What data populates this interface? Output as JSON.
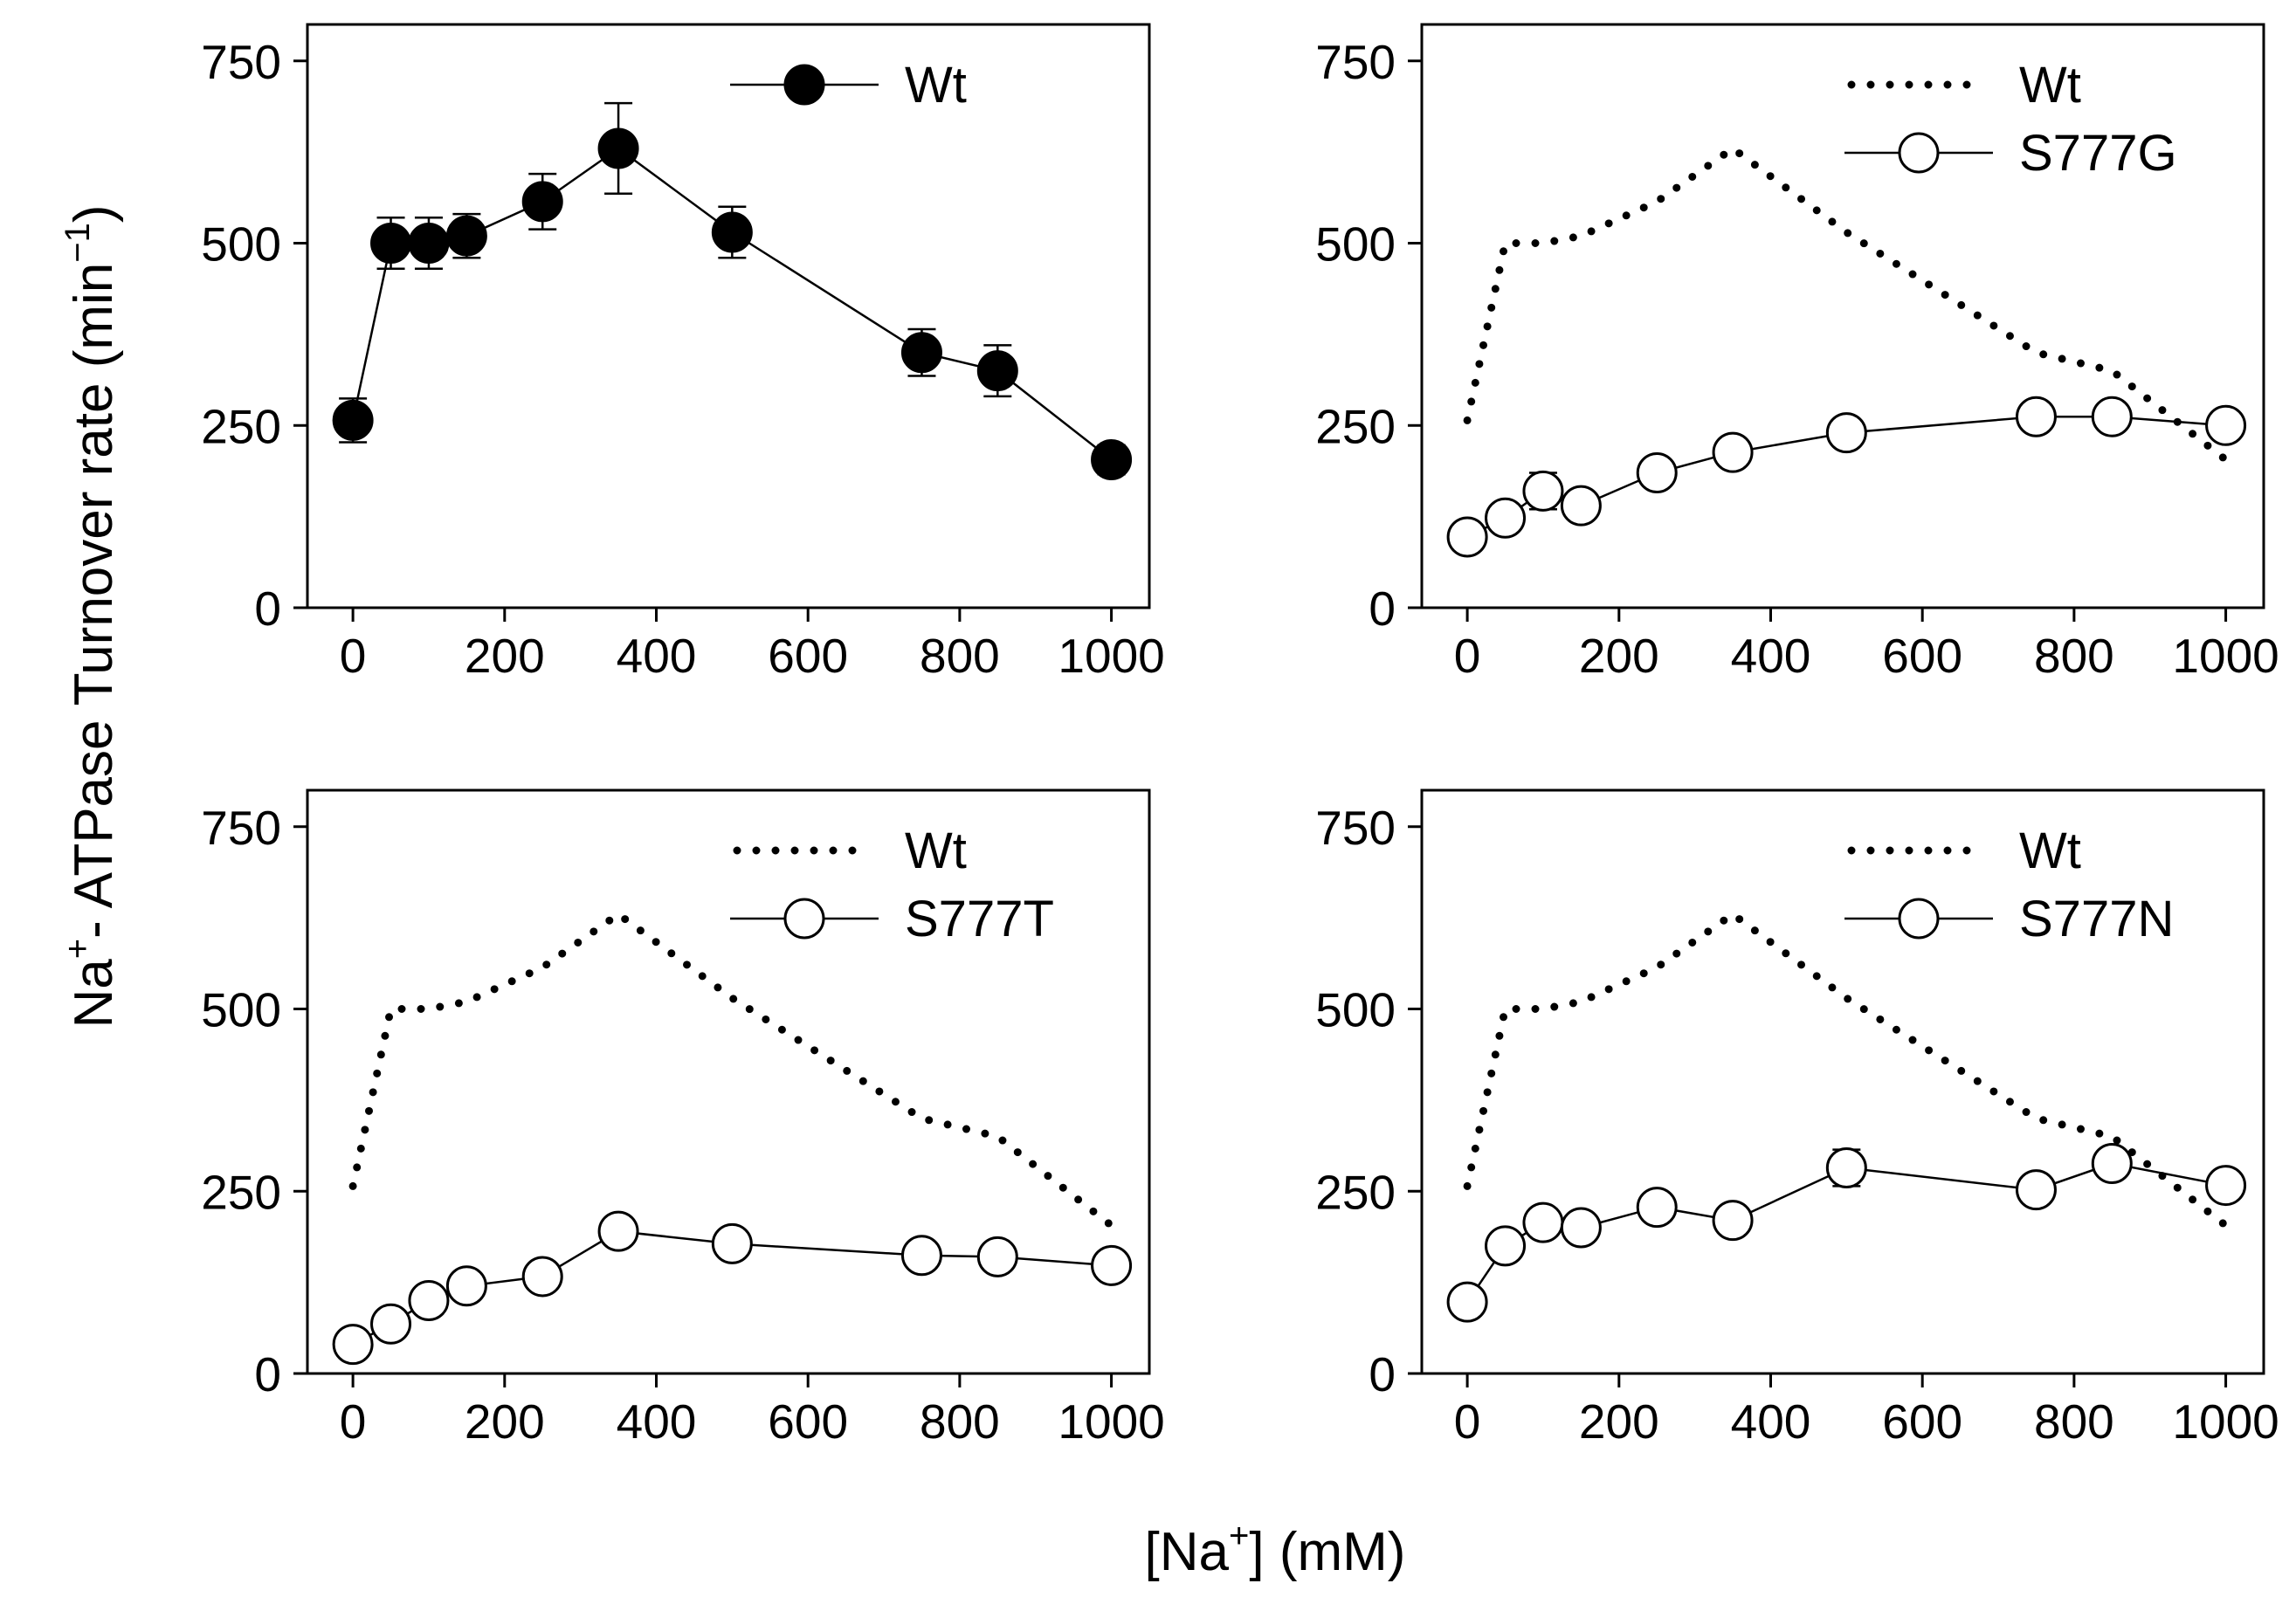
{
  "figure": {
    "ylabel_main": "Na",
    "ylabel_sup1": "+",
    "ylabel_rest": "- ATPase Turnover rate (min",
    "ylabel_sup2": "−1",
    "ylabel_close": ")",
    "xlabel_pre": "[Na",
    "xlabel_sup": "+",
    "xlabel_post": "] (mM)"
  },
  "chart_data": [
    {
      "type": "line",
      "panel": "top-left",
      "xlim": [
        -60,
        1050
      ],
      "ylim": [
        0,
        800
      ],
      "xticks": [
        0,
        200,
        400,
        600,
        800,
        1000
      ],
      "yticks": [
        0,
        250,
        500,
        750
      ],
      "legend": "top-right",
      "series": [
        {
          "name": "Wt",
          "style": "line-filled-circle",
          "x": [
            0,
            50,
            100,
            150,
            250,
            350,
            500,
            750,
            850,
            1000
          ],
          "y": [
            257,
            500,
            500,
            510,
            557,
            630,
            515,
            350,
            325,
            203
          ],
          "err": [
            30,
            35,
            35,
            30,
            38,
            62,
            35,
            32,
            35,
            20
          ]
        }
      ]
    },
    {
      "type": "line",
      "panel": "top-right",
      "xlim": [
        -60,
        1050
      ],
      "ylim": [
        0,
        800
      ],
      "xticks": [
        0,
        200,
        400,
        600,
        800,
        1000
      ],
      "yticks": [
        0,
        250,
        500,
        750
      ],
      "legend": "top-right",
      "series": [
        {
          "name": "Wt",
          "style": "dotted",
          "x": [
            0,
            50,
            100,
            150,
            250,
            350,
            500,
            750,
            850,
            1000
          ],
          "y": [
            257,
            500,
            500,
            510,
            557,
            630,
            515,
            350,
            325,
            203
          ]
        },
        {
          "name": "S777G",
          "style": "line-open-circle",
          "x": [
            0,
            50,
            100,
            150,
            250,
            350,
            500,
            750,
            850,
            1000
          ],
          "y": [
            97,
            123,
            160,
            140,
            185,
            213,
            240,
            262,
            262,
            250
          ],
          "err": [
            10,
            10,
            25,
            12,
            12,
            12,
            10,
            10,
            10,
            8
          ]
        }
      ]
    },
    {
      "type": "line",
      "panel": "bottom-left",
      "xlim": [
        -60,
        1050
      ],
      "ylim": [
        0,
        800
      ],
      "xticks": [
        0,
        200,
        400,
        600,
        800,
        1000
      ],
      "yticks": [
        0,
        250,
        500,
        750
      ],
      "legend": "top-right",
      "series": [
        {
          "name": "Wt",
          "style": "dotted",
          "x": [
            0,
            50,
            100,
            150,
            250,
            350,
            500,
            750,
            850,
            1000
          ],
          "y": [
            257,
            500,
            500,
            510,
            557,
            630,
            515,
            350,
            325,
            203
          ]
        },
        {
          "name": "S777T",
          "style": "line-open-circle",
          "x": [
            0,
            50,
            100,
            150,
            250,
            350,
            500,
            750,
            850,
            1000
          ],
          "y": [
            40,
            68,
            100,
            120,
            133,
            195,
            178,
            162,
            160,
            148
          ],
          "err": [
            8,
            8,
            10,
            10,
            10,
            12,
            10,
            10,
            8,
            8
          ]
        }
      ]
    },
    {
      "type": "line",
      "panel": "bottom-right",
      "xlim": [
        -60,
        1050
      ],
      "ylim": [
        0,
        800
      ],
      "xticks": [
        0,
        200,
        400,
        600,
        800,
        1000
      ],
      "yticks": [
        0,
        250,
        500,
        750
      ],
      "legend": "top-right",
      "series": [
        {
          "name": "Wt",
          "style": "dotted",
          "x": [
            0,
            50,
            100,
            150,
            250,
            350,
            500,
            750,
            850,
            1000
          ],
          "y": [
            257,
            500,
            500,
            510,
            557,
            630,
            515,
            350,
            325,
            203
          ]
        },
        {
          "name": "S777N",
          "style": "line-open-circle",
          "x": [
            0,
            50,
            100,
            150,
            250,
            350,
            500,
            750,
            850,
            1000
          ],
          "y": [
            98,
            175,
            207,
            200,
            228,
            210,
            282,
            252,
            288,
            258
          ],
          "err": [
            10,
            12,
            10,
            10,
            10,
            10,
            25,
            12,
            12,
            10
          ]
        }
      ]
    }
  ]
}
